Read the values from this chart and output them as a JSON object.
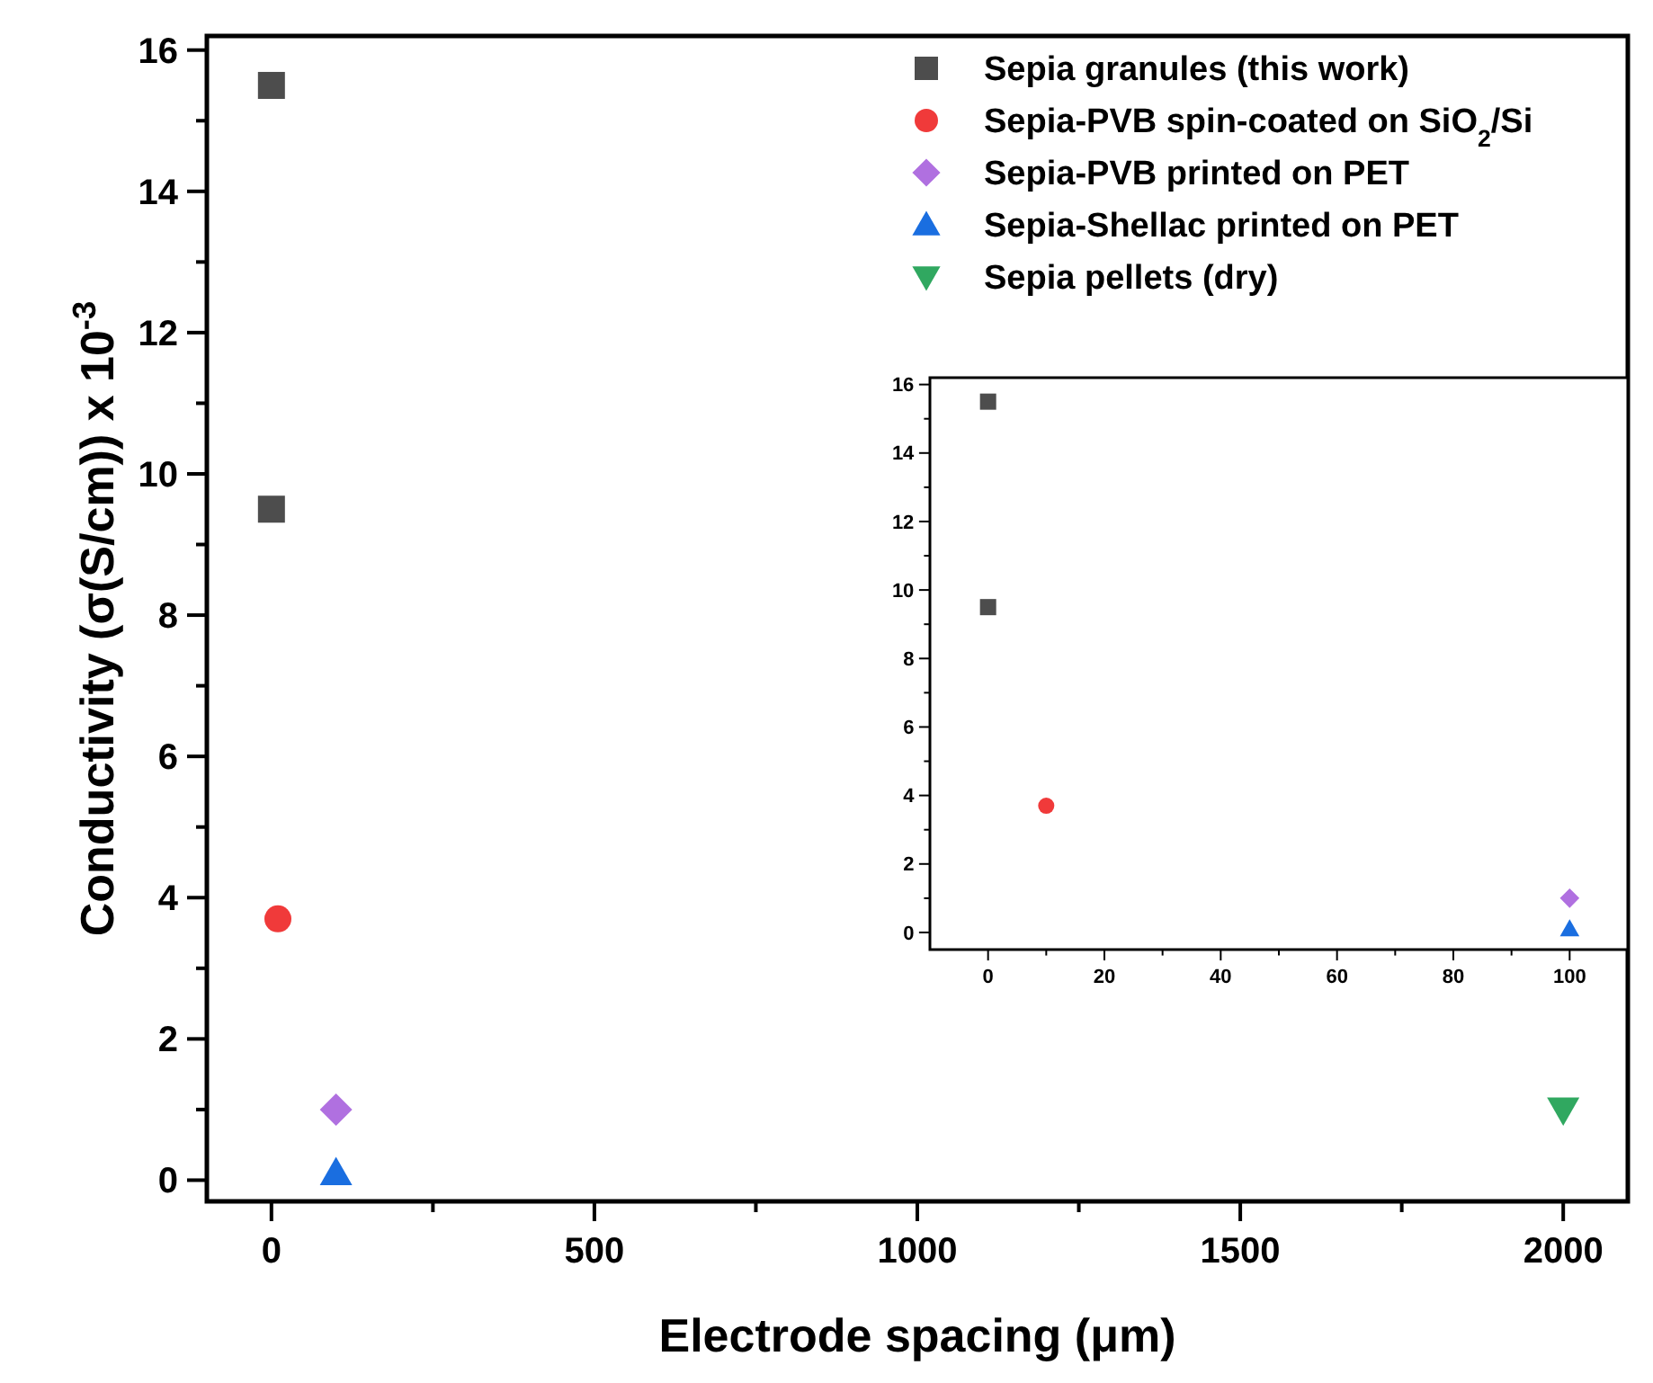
{
  "chart_data": [
    {
      "type": "scatter",
      "xlabel": "Electrode spacing (μm)",
      "ylabel": "Conductivity (σ(S/cm)) x 10$^{-3}$",
      "xlim": [
        -100,
        2100
      ],
      "ylim": [
        -0.3,
        16.2
      ],
      "xticks": [
        0,
        {
          "value": 250,
          "label": null
        },
        500,
        {
          "value": 750,
          "label": null
        },
        1000,
        {
          "value": 1250,
          "label": null
        },
        1500,
        {
          "value": 1750,
          "label": null
        },
        2000
      ],
      "yticks": [
        0,
        {
          "value": 1,
          "label": null
        },
        2,
        {
          "value": 3,
          "label": null
        },
        4,
        {
          "value": 5,
          "label": null
        },
        6,
        {
          "value": 7,
          "label": null
        },
        8,
        {
          "value": 9,
          "label": null
        },
        10,
        {
          "value": 11,
          "label": null
        },
        12,
        {
          "value": 13,
          "label": null
        },
        14,
        {
          "value": 15,
          "label": null
        },
        16
      ],
      "legend": "top right",
      "grid": false,
      "series": [
        {
          "name": "Sepia granules (this work)",
          "color": "#4d4d4d",
          "marker": "square",
          "x": [
            0,
            0
          ],
          "values": [
            15.5,
            9.5
          ]
        },
        {
          "name": "Sepia-PVB spin-coated on SiO$_{2}$/Si",
          "color": "#f03a3a",
          "marker": "circle",
          "x": [
            10
          ],
          "values": [
            3.7
          ]
        },
        {
          "name": "Sepia-PVB printed on PET",
          "color": "#b070e0",
          "marker": "diamond",
          "x": [
            100
          ],
          "values": [
            1.0
          ]
        },
        {
          "name": "Sepia-Shellac printed on PET",
          "color": "#1a6ee0",
          "marker": "triangle",
          "x": [
            100
          ],
          "values": [
            0.1
          ]
        },
        {
          "name": "Sepia pellets (dry)",
          "color": "#30a860",
          "marker": "triangle-down",
          "x": [
            2000
          ],
          "values": [
            1.0
          ]
        }
      ]
    },
    {
      "type": "scatter",
      "xlim": [
        -10,
        110
      ],
      "ylim": [
        -0.5,
        16.2
      ],
      "xticks": [
        0,
        {
          "value": 10,
          "label": null
        },
        20,
        {
          "value": 30,
          "label": null
        },
        40,
        {
          "value": 50,
          "label": null
        },
        60,
        {
          "value": 70,
          "label": null
        },
        80,
        {
          "value": 90,
          "label": null
        },
        100,
        {
          "value": 110,
          "label": null
        }
      ],
      "yticks": [
        0,
        {
          "value": 1,
          "label": null
        },
        2,
        {
          "value": 3,
          "label": null
        },
        4,
        {
          "value": 5,
          "label": null
        },
        6,
        {
          "value": 7,
          "label": null
        },
        8,
        {
          "value": 9,
          "label": null
        },
        10,
        {
          "value": 11,
          "label": null
        },
        12,
        {
          "value": 13,
          "label": null
        },
        14,
        {
          "value": 15,
          "label": null
        },
        16
      ],
      "legend": false,
      "grid": false,
      "series": [
        {
          "color": "#4d4d4d",
          "marker": "square",
          "x": [
            0,
            0
          ],
          "values": [
            15.5,
            9.5
          ]
        },
        {
          "color": "#f03a3a",
          "marker": "circle",
          "x": [
            10
          ],
          "values": [
            3.7
          ]
        },
        {
          "color": "#b070e0",
          "marker": "diamond",
          "x": [
            100
          ],
          "values": [
            1.0
          ]
        },
        {
          "color": "#1a6ee0",
          "marker": "triangle",
          "x": [
            100
          ],
          "values": [
            0.1
          ]
        }
      ]
    }
  ]
}
